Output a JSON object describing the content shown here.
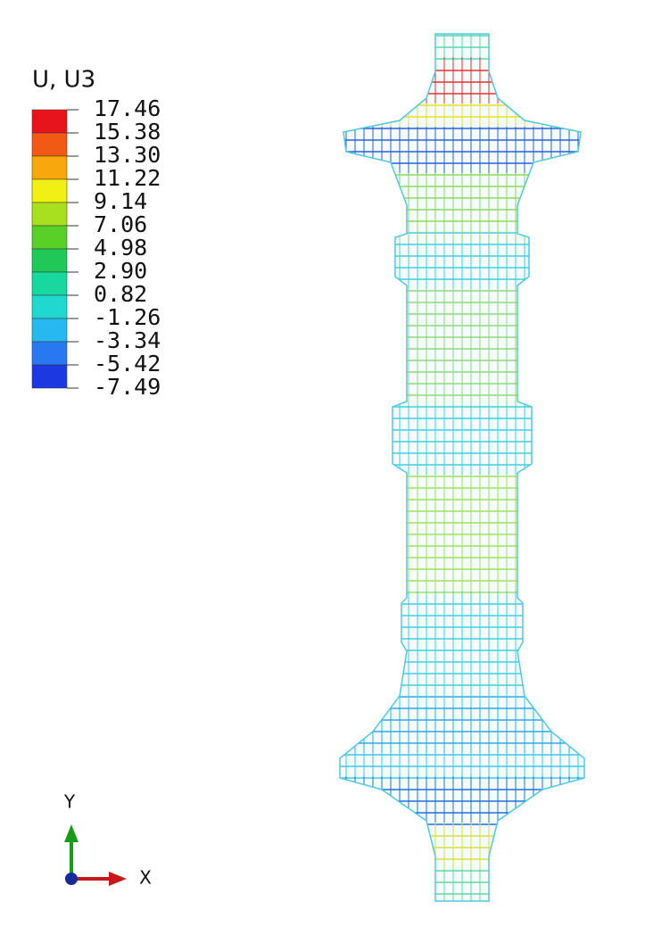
{
  "legend": {
    "title": "U, U3",
    "levels": [
      "17.46",
      "15.38",
      "13.30",
      "11.22",
      "9.14",
      "7.06",
      "4.98",
      "2.90",
      "0.82",
      "-1.26",
      "-3.34",
      "-5.42",
      "-7.49"
    ],
    "colors": [
      "#e8141c",
      "#f05a14",
      "#f8a80c",
      "#f0f014",
      "#a8e020",
      "#58d028",
      "#20c858",
      "#18d8a0",
      "#20d8d0",
      "#28b8f0",
      "#2878f0",
      "#1c38e0"
    ]
  },
  "triad": {
    "y": "Y",
    "x": "X"
  }
}
